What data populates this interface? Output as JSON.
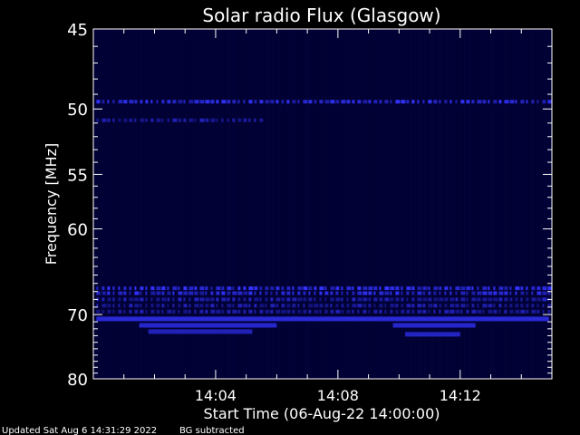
{
  "chart_data": {
    "type": "heatmap",
    "title": "Solar radio Flux (Glasgow)",
    "xlabel": "Start Time (06-Aug-22 14:00:00)",
    "ylabel": "Frequency [MHz]",
    "x_range_minutes": [
      0,
      15
    ],
    "x_ticks": [
      {
        "minute": 4,
        "label": "14:04"
      },
      {
        "minute": 8,
        "label": "14:08"
      },
      {
        "minute": 12,
        "label": "14:12"
      }
    ],
    "y_range_mhz": [
      45,
      80
    ],
    "y_ticks": [
      {
        "value": 45,
        "label": "45"
      },
      {
        "value": 50,
        "label": "50"
      },
      {
        "value": 55,
        "label": "55"
      },
      {
        "value": 60,
        "label": "60"
      },
      {
        "value": 70,
        "label": "70"
      },
      {
        "value": 80,
        "label": "80"
      }
    ],
    "y_scale": "reciprocal",
    "colormap": {
      "background": "#000033",
      "low": "#000066",
      "high": "#3333ff"
    },
    "features": [
      {
        "kind": "band",
        "freq_mhz": 49.5,
        "t_start": 0.1,
        "t_end": 14.9,
        "intensity": 0.85,
        "dotted": true
      },
      {
        "kind": "band",
        "freq_mhz": 50.8,
        "t_start": 0.1,
        "t_end": 5.5,
        "intensity": 0.55,
        "dotted": true
      },
      {
        "kind": "band",
        "freq_mhz": 66.6,
        "t_start": 0.1,
        "t_end": 14.9,
        "intensity": 0.9,
        "dotted": true
      },
      {
        "kind": "band",
        "freq_mhz": 67.2,
        "t_start": 0.1,
        "t_end": 14.9,
        "intensity": 0.8,
        "dotted": true
      },
      {
        "kind": "band",
        "freq_mhz": 68.0,
        "t_start": 0.1,
        "t_end": 14.9,
        "intensity": 0.6,
        "dotted": true
      },
      {
        "kind": "band",
        "freq_mhz": 68.8,
        "t_start": 0.1,
        "t_end": 14.9,
        "intensity": 0.55,
        "dotted": true
      },
      {
        "kind": "band",
        "freq_mhz": 69.6,
        "t_start": 0.1,
        "t_end": 14.9,
        "intensity": 0.55,
        "dotted": true
      },
      {
        "kind": "band",
        "freq_mhz": 70.6,
        "t_start": 0.1,
        "t_end": 14.9,
        "intensity": 0.8,
        "dotted": false
      },
      {
        "kind": "band",
        "freq_mhz": 71.5,
        "t_start": 1.5,
        "t_end": 6.0,
        "intensity": 0.75,
        "dotted": false
      },
      {
        "kind": "band",
        "freq_mhz": 71.5,
        "t_start": 9.8,
        "t_end": 12.5,
        "intensity": 0.75,
        "dotted": false
      },
      {
        "kind": "band",
        "freq_mhz": 72.4,
        "t_start": 1.8,
        "t_end": 5.2,
        "intensity": 0.65,
        "dotted": false
      },
      {
        "kind": "band",
        "freq_mhz": 72.8,
        "t_start": 10.2,
        "t_end": 12.0,
        "intensity": 0.7,
        "dotted": false
      }
    ]
  },
  "footer": {
    "updated": "Updated Sat Aug  6 14:31:29 2022",
    "note": "BG subtracted"
  }
}
